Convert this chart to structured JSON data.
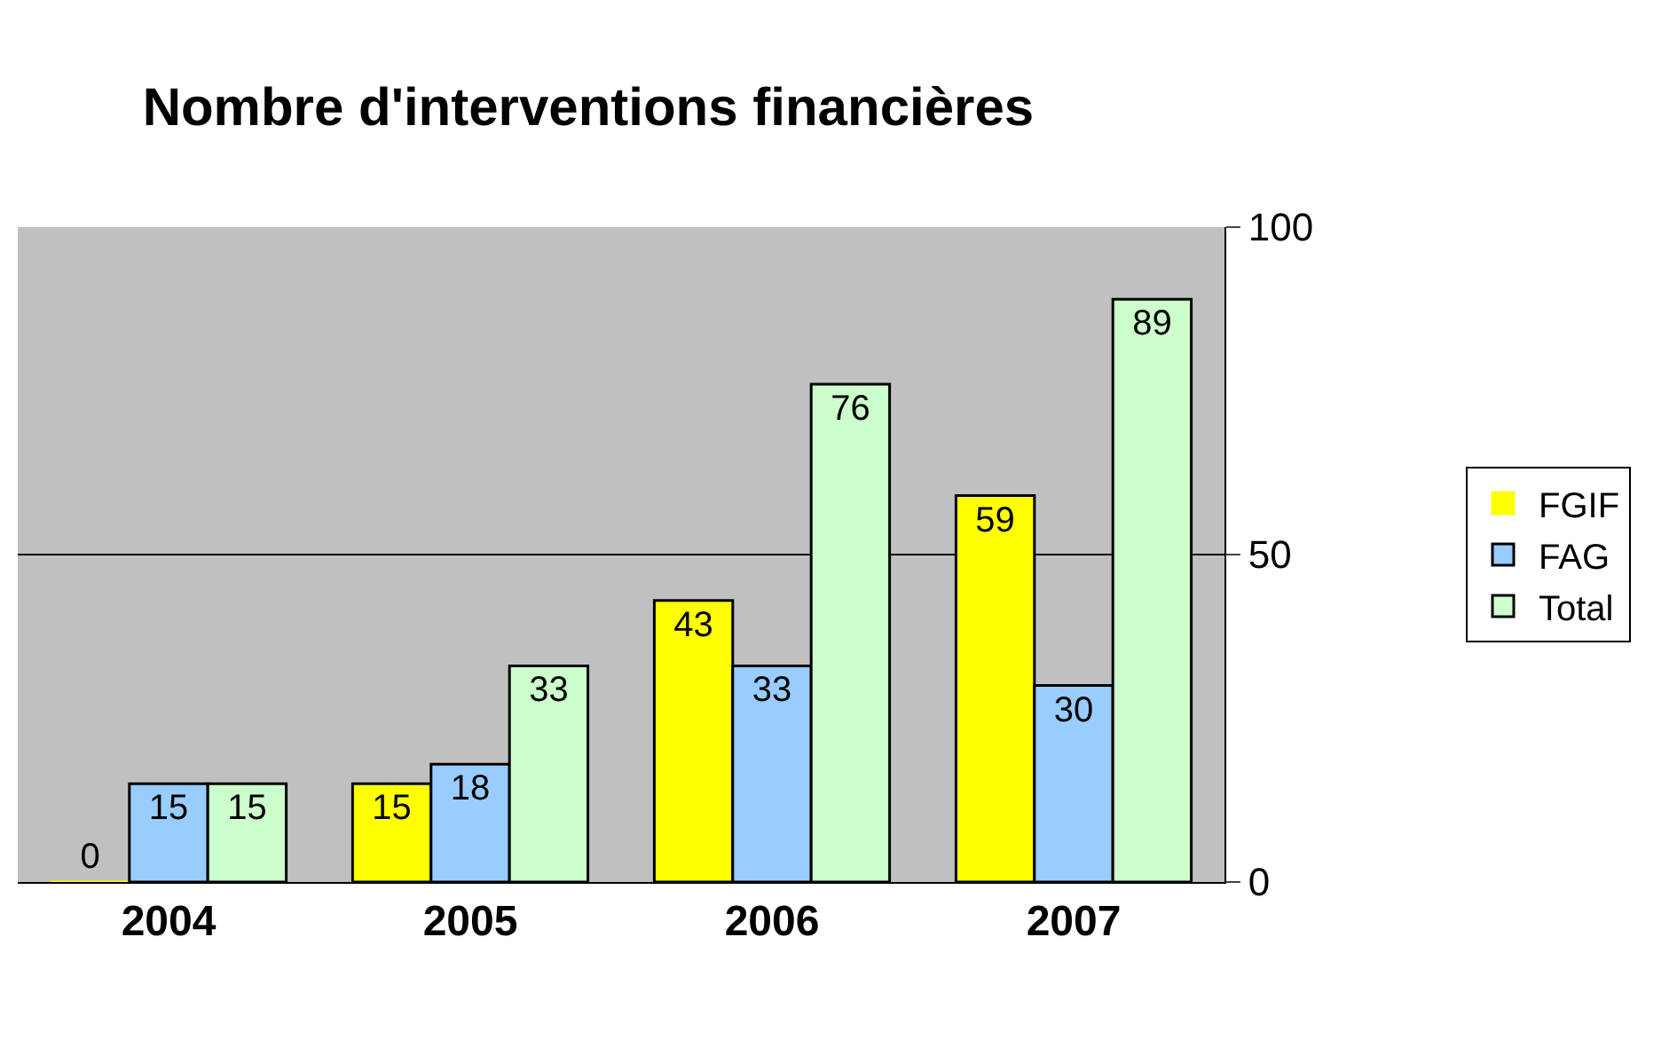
{
  "chart_data": {
    "type": "bar",
    "title": "Nombre d'interventions financières",
    "categories": [
      "2004",
      "2005",
      "2006",
      "2007"
    ],
    "series": [
      {
        "name": "FGIF",
        "color": "#ffff00",
        "values": [
          0,
          15,
          43,
          59
        ]
      },
      {
        "name": "FAG",
        "color": "#99ccff",
        "values": [
          15,
          18,
          33,
          30
        ]
      },
      {
        "name": "Total",
        "color": "#ccffcc",
        "values": [
          15,
          33,
          76,
          89
        ]
      }
    ],
    "ylim": [
      0,
      100
    ],
    "yticks": [
      0,
      50,
      100
    ],
    "grid": "y",
    "legend": "right",
    "data_labels": true
  }
}
